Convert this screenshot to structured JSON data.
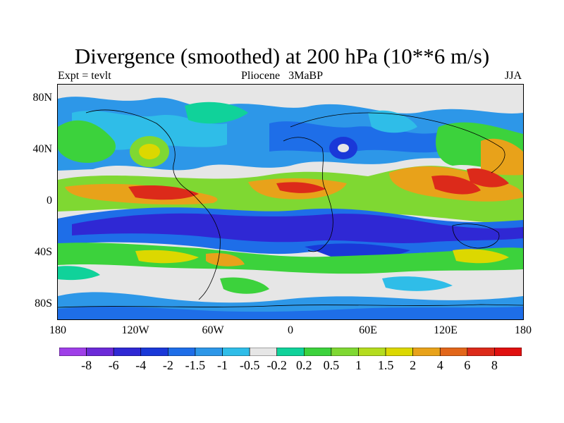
{
  "title": "Divergence (smoothed) at 200 hPa (10**6 m/s)",
  "experiment": "Expt = tevlt",
  "center_label": "Pliocene   3MaBP",
  "season": "JJA",
  "y_axis": [
    "80N",
    "40N",
    "0",
    "40S",
    "80S"
  ],
  "x_axis": [
    "180",
    "120W",
    "60W",
    "0",
    "60E",
    "120E",
    "180"
  ],
  "colorbar": {
    "labels": [
      "-8",
      "-6",
      "-4",
      "-2",
      "-1.5",
      "-1",
      "-0.5",
      "-0.2",
      "0.2",
      "0.5",
      "1",
      "1.5",
      "2",
      "4",
      "6",
      "8"
    ],
    "colors": [
      "#9f3fe8",
      "#6c2ad8",
      "#2f28d4",
      "#1a38d8",
      "#1e6ee8",
      "#2d97e8",
      "#2fbde8",
      "#e6e6e6",
      "#10d29a",
      "#3cd23c",
      "#7fd832",
      "#b4dc1e",
      "#dcd800",
      "#e8a21a",
      "#e2661a",
      "#dc2a1a",
      "#e01010"
    ]
  },
  "map": {
    "background_color": "#e6e6e6",
    "field_description_colors": {
      "strong_convergence": "#1a38d8",
      "convergence": "#2d97e8",
      "weak_convergence": "#2fbde8",
      "near_zero": "#e6e6e6",
      "weak_divergence": "#10d29a",
      "divergence": "#7fd832",
      "strong_divergence": "#e8a21a",
      "max_divergence": "#dc2a1a"
    }
  }
}
